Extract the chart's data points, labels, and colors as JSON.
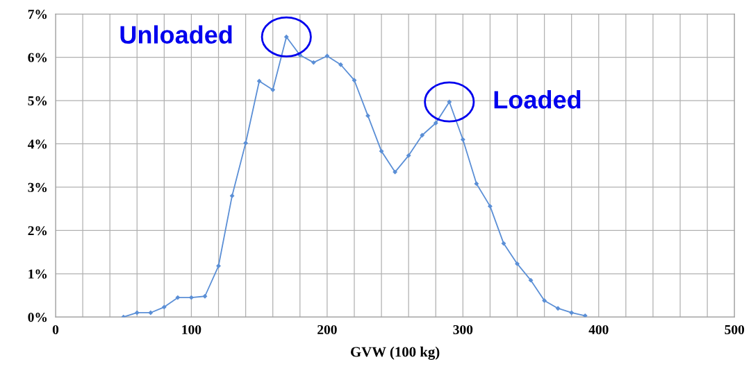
{
  "chart_data": {
    "type": "line",
    "xlabel": "GVW (100 kg)",
    "x": [
      50,
      60,
      70,
      80,
      90,
      100,
      110,
      120,
      130,
      140,
      150,
      160,
      170,
      180,
      190,
      200,
      210,
      220,
      230,
      240,
      250,
      260,
      270,
      280,
      290,
      300,
      310,
      320,
      330,
      340,
      350,
      360,
      370,
      380,
      390
    ],
    "series": [
      {
        "color": "#5b8fd6",
        "values": [
          0,
          0.1,
          0.1,
          0.23,
          0.45,
          0.45,
          0.48,
          1.18,
          2.8,
          4.02,
          5.45,
          5.25,
          6.47,
          6.05,
          5.88,
          6.03,
          5.83,
          5.47,
          4.65,
          3.83,
          3.35,
          3.73,
          4.2,
          4.48,
          4.97,
          4.1,
          3.08,
          2.56,
          1.7,
          1.23,
          0.85,
          0.38,
          0.2,
          0.1,
          0.03
        ]
      }
    ],
    "xlim": [
      0,
      500
    ],
    "xticks": [
      0,
      100,
      200,
      300,
      400,
      500
    ],
    "ylim": [
      0,
      7
    ],
    "yticks": [
      {
        "value": 0,
        "label": "0%"
      },
      {
        "value": 1,
        "label": "1%"
      },
      {
        "value": 2,
        "label": "2%"
      },
      {
        "value": 3,
        "label": "3%"
      },
      {
        "value": 4,
        "label": "4%"
      },
      {
        "value": 5,
        "label": "5%"
      },
      {
        "value": 6,
        "label": "6%"
      },
      {
        "value": 7,
        "label": "7%"
      }
    ],
    "grid": true,
    "marker": "diamond",
    "line_style": "solid",
    "annotations": [
      {
        "text": "Unloaded",
        "x": 170,
        "y": 6.47
      },
      {
        "text": "Loaded",
        "x": 290,
        "y": 4.97
      }
    ]
  }
}
